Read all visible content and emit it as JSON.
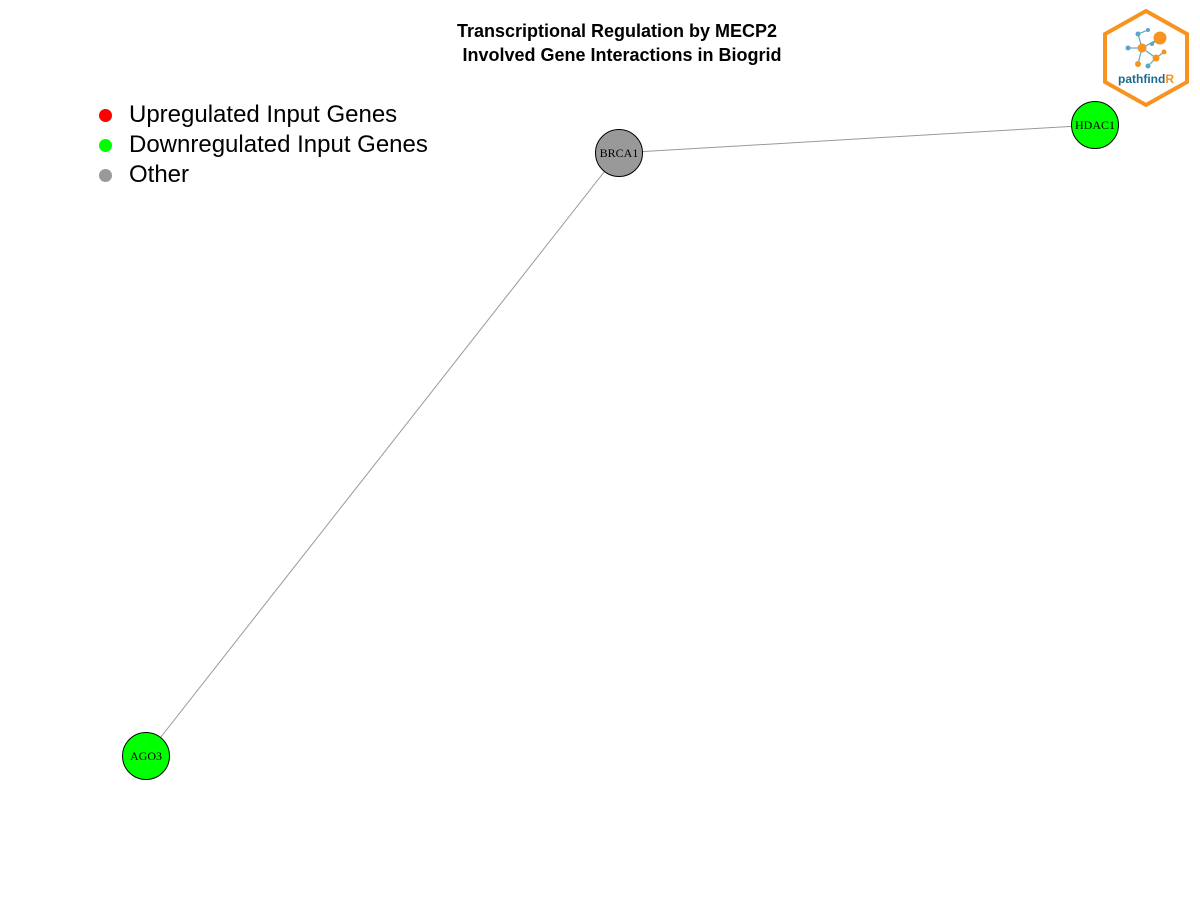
{
  "title": {
    "line1": "Transcriptional Regulation by MECP2",
    "line2": "Involved Gene Interactions in Biogrid"
  },
  "legend": [
    {
      "label": "Upregulated Input Genes",
      "color": "#ff0000"
    },
    {
      "label": "Downregulated Input Genes",
      "color": "#00ff00"
    },
    {
      "label": "Other",
      "color": "#999999"
    }
  ],
  "network": {
    "nodes": [
      {
        "id": "BRCA1",
        "label": "BRCA1",
        "color": "#999999"
      },
      {
        "id": "HDAC1",
        "label": "HDAC1",
        "color": "#00ff00"
      },
      {
        "id": "AGO3",
        "label": "AGO3",
        "color": "#00ff00"
      }
    ],
    "edges": [
      {
        "source": "BRCA1",
        "target": "HDAC1"
      },
      {
        "source": "BRCA1",
        "target": "AGO3"
      }
    ],
    "edge_color": "#999999"
  },
  "logo": {
    "text_main": "pathfind",
    "text_accent": "R",
    "border_color": "#f7931e",
    "text_color": "#1b6a8f",
    "accent_color": "#f7931e"
  }
}
